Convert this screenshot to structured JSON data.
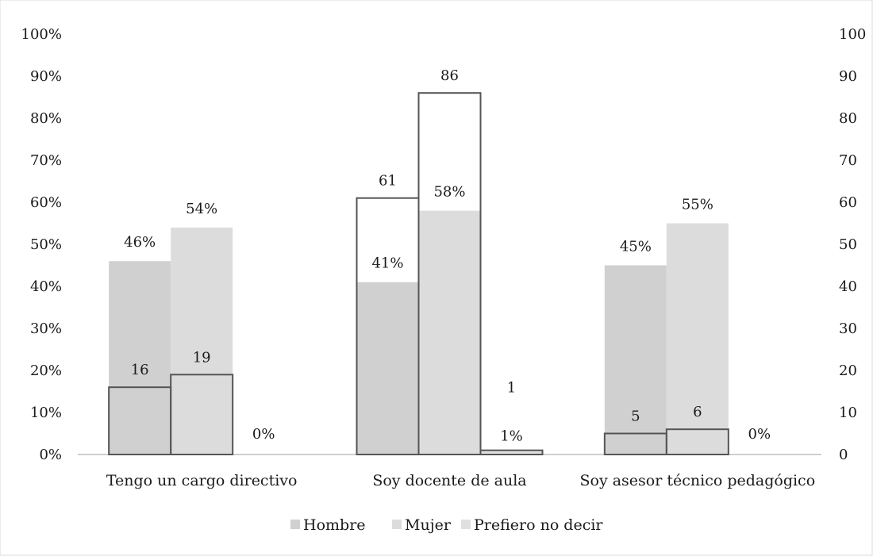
{
  "chart_data": {
    "type": "bar",
    "categories": [
      "Tengo un cargo directivo",
      "Soy docente de aula",
      "Soy asesor técnico pedagógico"
    ],
    "series": [
      {
        "name": "Hombre",
        "axis": "left",
        "values": [
          46,
          41,
          45
        ],
        "labels": [
          "46%",
          "41%",
          "45%"
        ],
        "color": "#d0d0d0"
      },
      {
        "name": "Mujer",
        "axis": "left",
        "values": [
          54,
          58,
          55
        ],
        "labels": [
          "54%",
          "58%",
          "55%"
        ],
        "color": "#dcdcdc"
      },
      {
        "name": "Prefiero no decir",
        "axis": "left",
        "values": [
          0,
          1,
          0
        ],
        "labels": [
          "0%",
          "1%",
          "0%"
        ],
        "color": "#e0e0e0"
      }
    ],
    "count_series": [
      {
        "name": "Hombre",
        "axis": "right",
        "values": [
          16,
          61,
          5
        ]
      },
      {
        "name": "Mujer",
        "axis": "right",
        "values": [
          19,
          86,
          6
        ]
      },
      {
        "name": "Prefiero no decir",
        "axis": "right",
        "values": [
          0,
          1,
          0
        ]
      }
    ],
    "count_labels": [
      [
        "16",
        "19",
        ""
      ],
      [
        "61",
        "86",
        "1"
      ],
      [
        "5",
        "6",
        ""
      ]
    ],
    "y_left": {
      "ticks": [
        "0%",
        "10%",
        "20%",
        "30%",
        "40%",
        "50%",
        "60%",
        "70%",
        "80%",
        "90%",
        "100%"
      ],
      "ylim": [
        0,
        100
      ]
    },
    "y_right": {
      "ticks": [
        "0",
        "10",
        "20",
        "30",
        "40",
        "50",
        "60",
        "70",
        "80",
        "90",
        "100"
      ],
      "ylim": [
        0,
        100
      ]
    },
    "legend": {
      "position": "bottom",
      "entries": [
        "Hombre",
        "Mujer",
        "Prefiero no decir"
      ]
    },
    "grid": false,
    "outline_color": "#555555"
  }
}
